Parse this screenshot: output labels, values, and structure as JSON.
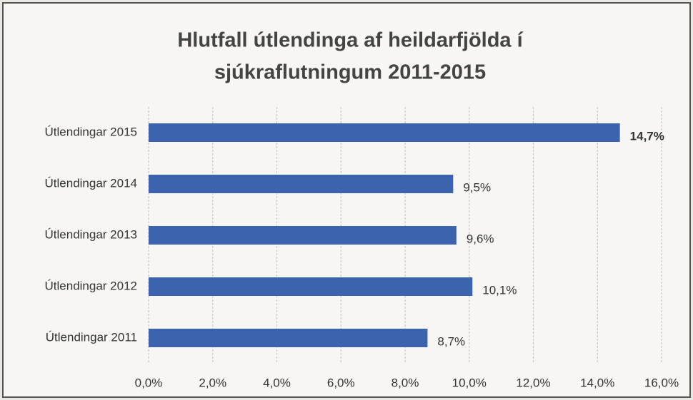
{
  "chart_data": {
    "type": "barh",
    "title": [
      "Hlutfall útlendinga af heildarfjölda í",
      "sjúkraflutningum 2011-2015"
    ],
    "categories": [
      "Útlendingar 2015",
      "Útlendingar 2014",
      "Útlendingar 2013",
      "Útlendingar 2012",
      "Útlendingar 2011"
    ],
    "values": [
      14.7,
      9.5,
      9.6,
      10.1,
      8.7
    ],
    "value_labels": [
      "14,7%",
      "9,5%",
      "9,6%",
      "10,1%",
      "8,7%"
    ],
    "color": "#3c63ad",
    "xlim": [
      0,
      16
    ],
    "xticks": [
      {
        "value": 0,
        "label": "0,0%"
      },
      {
        "value": 2,
        "label": "2,0%"
      },
      {
        "value": 4,
        "label": "4,0%"
      },
      {
        "value": 6,
        "label": "6,0%"
      },
      {
        "value": 8,
        "label": "8,0%"
      },
      {
        "value": 10,
        "label": "10,0%"
      },
      {
        "value": 12,
        "label": "12,0%"
      },
      {
        "value": 14,
        "label": "14,0%"
      },
      {
        "value": 16,
        "label": "16,0%"
      }
    ],
    "grid": true
  }
}
